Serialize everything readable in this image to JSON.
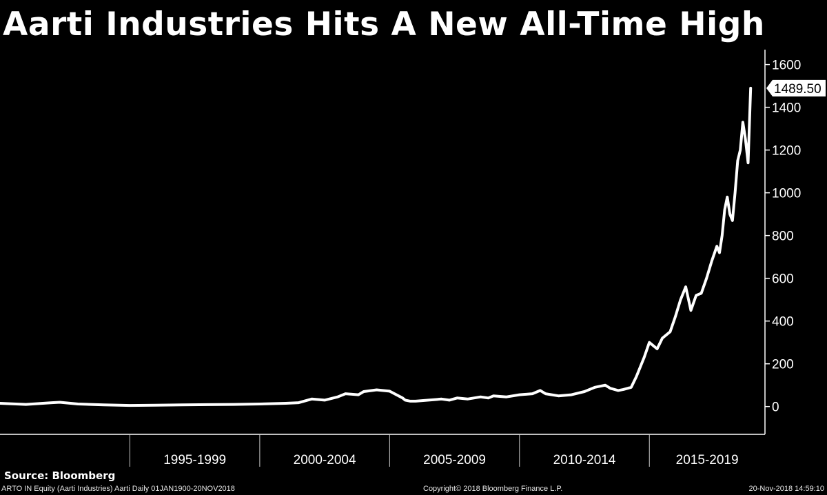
{
  "title": "Aarti Industries Hits A New All-Time High",
  "source": "Source: Bloomberg",
  "footer": {
    "left": "ARTO IN Equity (Aarti Industries) Aarti  Daily 01JAN1900-20NOV2018",
    "center": "Copyright© 2018 Bloomberg Finance L.P.",
    "right": "20-Nov-2018 14:59:10"
  },
  "colors": {
    "background": "#000000",
    "line": "#ffffff",
    "axis": "#ffffff"
  },
  "chart_data": {
    "type": "line",
    "title": "Aarti Industries Hits A New All-Time High",
    "xlabel": "",
    "ylabel": "",
    "ylim": [
      -130,
      1660
    ],
    "xlim": [
      1990.0,
      2019.0
    ],
    "yticks": [
      0,
      200,
      400,
      600,
      800,
      1000,
      1200,
      1400,
      1600
    ],
    "x_periods": [
      {
        "label": "1995-1999",
        "start": 1995.0,
        "end": 2000.0
      },
      {
        "label": "2000-2004",
        "start": 2000.0,
        "end": 2005.0
      },
      {
        "label": "2005-2009",
        "start": 2005.0,
        "end": 2010.0
      },
      {
        "label": "2010-2014",
        "start": 2010.0,
        "end": 2015.0
      },
      {
        "label": "2015-2019",
        "start": 2015.0,
        "end": 2020.0
      }
    ],
    "last_value_label": "1489.50",
    "grid": false,
    "series": [
      {
        "name": "ARTO IN Equity",
        "x": [
          1990.0,
          1991.0,
          1992.0,
          1992.3,
          1993.0,
          1994.0,
          1995.0,
          1996.0,
          1997.0,
          1998.0,
          1999.0,
          2000.0,
          2001.0,
          2001.5,
          2002.0,
          2002.5,
          2003.0,
          2003.3,
          2003.8,
          2004.0,
          2004.5,
          2005.0,
          2005.5,
          2005.6,
          2005.8,
          2006.0,
          2006.5,
          2007.0,
          2007.3,
          2007.6,
          2008.0,
          2008.5,
          2008.8,
          2009.0,
          2009.5,
          2010.0,
          2010.5,
          2010.8,
          2011.0,
          2011.5,
          2012.0,
          2012.5,
          2012.9,
          2013.3,
          2013.5,
          2013.8,
          2014.0,
          2014.3,
          2014.5,
          2014.8,
          2015.0,
          2015.1,
          2015.3,
          2015.5,
          2015.8,
          2016.0,
          2016.2,
          2016.4,
          2016.6,
          2016.8,
          2017.0,
          2017.2,
          2017.4,
          2017.6,
          2017.7,
          2017.8,
          2017.9,
          2018.0,
          2018.1,
          2018.2,
          2018.3,
          2018.4,
          2018.5,
          2018.6,
          2018.7,
          2018.8,
          2018.9
        ],
        "values": [
          15,
          10,
          18,
          20,
          12,
          8,
          5,
          6,
          8,
          9,
          10,
          12,
          15,
          18,
          35,
          30,
          45,
          60,
          55,
          70,
          78,
          72,
          40,
          30,
          25,
          25,
          30,
          35,
          30,
          40,
          35,
          45,
          40,
          50,
          45,
          55,
          60,
          75,
          60,
          50,
          55,
          70,
          90,
          100,
          85,
          75,
          80,
          90,
          140,
          230,
          300,
          290,
          270,
          320,
          350,
          420,
          500,
          560,
          450,
          520,
          530,
          600,
          680,
          750,
          720,
          800,
          920,
          980,
          900,
          870,
          1000,
          1150,
          1200,
          1330,
          1250,
          1140,
          1489.5
        ]
      }
    ]
  }
}
